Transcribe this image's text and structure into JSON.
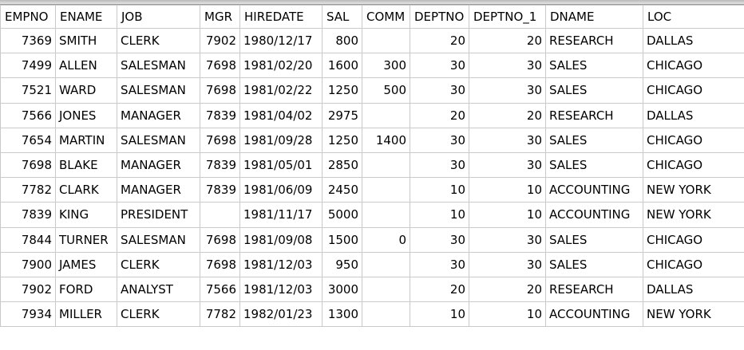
{
  "grid": {
    "columns": [
      "EMPNO",
      "ENAME",
      "JOB",
      "MGR",
      "HIREDATE",
      "SAL",
      "COMM",
      "DEPTNO",
      "DEPTNO_1",
      "DNAME",
      "LOC"
    ],
    "numeric_columns": [
      0,
      3,
      5,
      6,
      7,
      8
    ],
    "rows": [
      [
        "7369",
        "SMITH",
        "CLERK",
        "7902",
        "1980/12/17",
        "800",
        "",
        "20",
        "20",
        "RESEARCH",
        "DALLAS"
      ],
      [
        "7499",
        "ALLEN",
        "SALESMAN",
        "7698",
        "1981/02/20",
        "1600",
        "300",
        "30",
        "30",
        "SALES",
        "CHICAGO"
      ],
      [
        "7521",
        "WARD",
        "SALESMAN",
        "7698",
        "1981/02/22",
        "1250",
        "500",
        "30",
        "30",
        "SALES",
        "CHICAGO"
      ],
      [
        "7566",
        "JONES",
        "MANAGER",
        "7839",
        "1981/04/02",
        "2975",
        "",
        "20",
        "20",
        "RESEARCH",
        "DALLAS"
      ],
      [
        "7654",
        "MARTIN",
        "SALESMAN",
        "7698",
        "1981/09/28",
        "1250",
        "1400",
        "30",
        "30",
        "SALES",
        "CHICAGO"
      ],
      [
        "7698",
        "BLAKE",
        "MANAGER",
        "7839",
        "1981/05/01",
        "2850",
        "",
        "30",
        "30",
        "SALES",
        "CHICAGO"
      ],
      [
        "7782",
        "CLARK",
        "MANAGER",
        "7839",
        "1981/06/09",
        "2450",
        "",
        "10",
        "10",
        "ACCOUNTING",
        "NEW YORK"
      ],
      [
        "7839",
        "KING",
        "PRESIDENT",
        "",
        "1981/11/17",
        "5000",
        "",
        "10",
        "10",
        "ACCOUNTING",
        "NEW YORK"
      ],
      [
        "7844",
        "TURNER",
        "SALESMAN",
        "7698",
        "1981/09/08",
        "1500",
        "0",
        "30",
        "30",
        "SALES",
        "CHICAGO"
      ],
      [
        "7900",
        "JAMES",
        "CLERK",
        "7698",
        "1981/12/03",
        "950",
        "",
        "30",
        "30",
        "SALES",
        "CHICAGO"
      ],
      [
        "7902",
        "FORD",
        "ANALYST",
        "7566",
        "1981/12/03",
        "3000",
        "",
        "20",
        "20",
        "RESEARCH",
        "DALLAS"
      ],
      [
        "7934",
        "MILLER",
        "CLERK",
        "7782",
        "1982/01/23",
        "1300",
        "",
        "10",
        "10",
        "ACCOUNTING",
        "NEW YORK"
      ]
    ]
  }
}
